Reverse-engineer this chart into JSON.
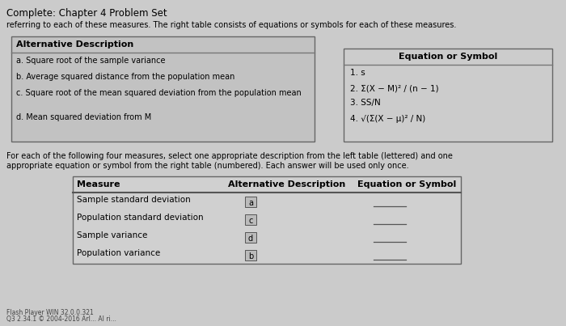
{
  "title": "Complete: Chapter 4 Problem Set",
  "subtitle": "referring to each of these measures. The right table consists of equations or symbols for each of these measures.",
  "left_table_header": "Alternative Description",
  "left_table_rows": [
    "a. Square root of the sample variance",
    "b. Average squared distance from the population mean",
    "c. Square root of the mean squared deviation from the population mean",
    "d. Mean squared deviation from M"
  ],
  "right_table_header": "Equation or Symbol",
  "right_table_rows": [
    "1. s",
    "2. Σ(X − M)² / (n − 1)",
    "3. SS/N",
    "4. √(Σ(X − μ)² / N)"
  ],
  "paragraph_line1": "For each of the following four measures, select one appropriate description from the left table (lettered) and one",
  "paragraph_line2": "appropriate equation or symbol from the right table (numbered). Each answer will be used only once.",
  "bottom_table_headers": [
    "Measure",
    "Alternative Description",
    "Equation or Symbol"
  ],
  "bottom_table_measures": [
    "Sample standard deviation",
    "Population standard deviation",
    "Sample variance",
    "Population variance"
  ],
  "bottom_table_alt_desc": [
    "a",
    "c",
    "d",
    "b"
  ],
  "footer_line1": "Flash Player WIN 32.0.0.321",
  "footer_line2": "Q3 2.34.1 © 2004-2016 Arl... Al ri...",
  "bg_color": "#cbcbcb",
  "left_table_bg": "#c2c2c2",
  "right_table_bg": "#cccccc",
  "bottom_table_bg": "#d0d0d0"
}
